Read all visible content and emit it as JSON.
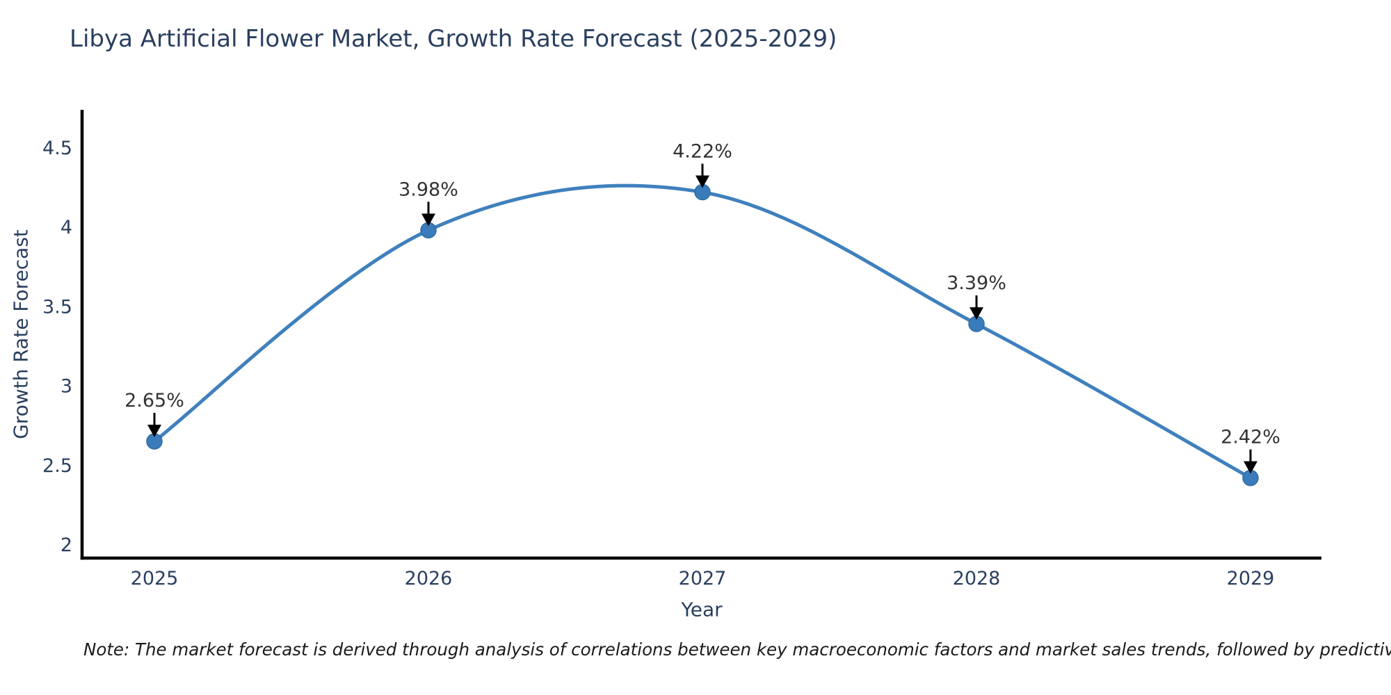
{
  "chart_data": {
    "type": "line",
    "title": "Libya Artificial Flower Market, Growth Rate Forecast (2025-2029)",
    "xlabel": "Year",
    "ylabel": "Growth Rate Forecast",
    "categories": [
      "2025",
      "2026",
      "2027",
      "2028",
      "2029"
    ],
    "values": [
      2.65,
      3.98,
      4.22,
      3.39,
      2.42
    ],
    "point_labels": [
      "2.65%",
      "3.98%",
      "4.22%",
      "3.39%",
      "2.42%"
    ],
    "yticks": [
      2,
      2.5,
      3,
      3.5,
      4,
      4.5
    ],
    "ylim": [
      1.915,
      4.73
    ],
    "line_shape": "spline",
    "markers": true,
    "grid": false,
    "legend_position": "none",
    "colors": {
      "line": "#3f80bd",
      "marker": "#3a7cbb",
      "marker_edge": "#2f6ba3",
      "axis": "#000000",
      "title_text": "#2a3f5f",
      "tick_text": "#2a3f5f",
      "annotation_text": "#333333",
      "arrow": "#000000",
      "background": "#ffffff"
    }
  },
  "note": {
    "text": "Note: The market forecast is derived through analysis of correlations between key macroeconomic factors and market sales trends, followed by predictive modeling to project future sales"
  }
}
